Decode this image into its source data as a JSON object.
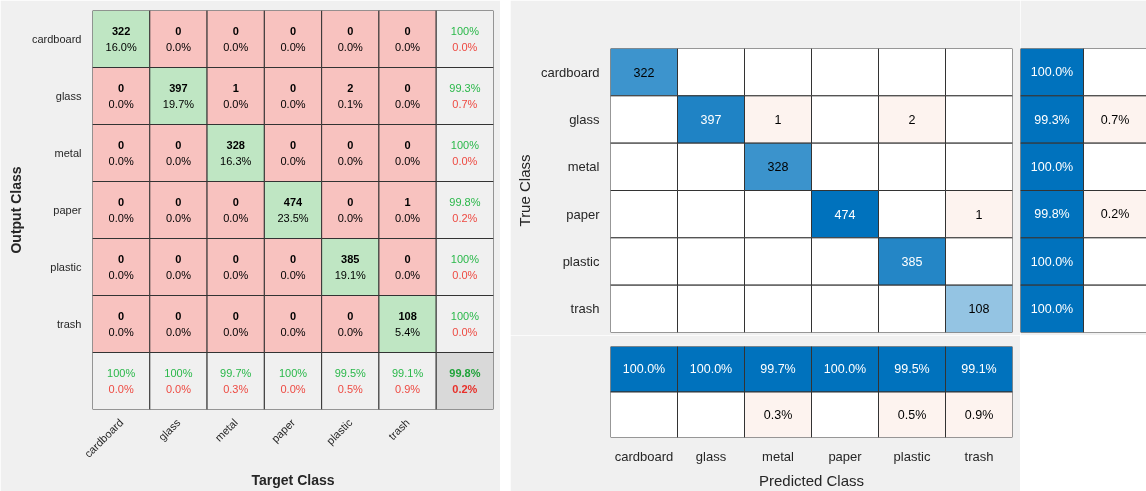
{
  "chart_data": [
    {
      "type": "heatmap",
      "xlabel": "Target Class",
      "ylabel": "Output Class",
      "categories": [
        "cardboard",
        "glass",
        "metal",
        "paper",
        "plastic",
        "trash",
        null
      ],
      "y_categories": [
        "cardboard",
        "glass",
        "metal",
        "paper",
        "plastic",
        "trash",
        null
      ],
      "cells": [
        [
          322,
          0,
          0,
          0,
          0,
          0,
          100
        ],
        [
          0,
          397,
          1,
          0,
          2,
          0,
          99.3
        ],
        [
          0,
          0,
          328,
          0,
          0,
          0,
          100
        ],
        [
          0,
          0,
          0,
          474,
          0,
          1,
          99.8
        ],
        [
          0,
          0,
          0,
          0,
          385,
          0,
          100
        ],
        [
          0,
          0,
          0,
          0,
          0,
          108,
          100
        ],
        [
          100,
          100,
          99.7,
          100,
          99.5,
          99.1,
          99.8
        ]
      ],
      "cell_labels": [
        [
          "322",
          "0",
          "0",
          "0",
          "0",
          "0",
          "100%"
        ],
        [
          "0",
          "397",
          "1",
          "0",
          "2",
          "0",
          "99.3%"
        ],
        [
          "0",
          "0",
          "328",
          "0",
          "0",
          "0",
          "100%"
        ],
        [
          "0",
          "0",
          "0",
          "474",
          "0",
          "1",
          "99.8%"
        ],
        [
          "0",
          "0",
          "0",
          "0",
          "385",
          "0",
          "100%"
        ],
        [
          "0",
          "0",
          "0",
          "0",
          "0",
          "108",
          "100%"
        ],
        [
          "100%",
          "100%",
          "99.7%",
          "100%",
          "99.5%",
          "99.1%",
          "99.8%"
        ]
      ],
      "annotations": [
        "16.0%",
        "0.0%",
        "0.0%",
        "0.0%",
        "0.0%",
        "0.0%",
        "0.0%",
        "0.0%",
        "19.7%",
        "0.0%",
        "0.0%",
        "0.1%",
        "0.0%",
        "0.7%",
        "0.0%",
        "0.0%",
        "16.3%",
        "0.0%",
        "0.0%",
        "0.0%",
        "0.0%",
        "0.0%",
        "0.0%",
        "0.0%",
        "23.5%",
        "0.0%",
        "0.0%",
        "0.2%",
        "0.0%",
        "0.0%",
        "0.0%",
        "0.0%",
        "19.1%",
        "0.0%",
        "0.0%",
        "0.0%",
        "0.0%",
        "0.0%",
        "0.0%",
        "0.0%",
        "5.4%",
        "0.0%",
        "0.0%",
        "0.0%",
        "0.3%",
        "0.0%",
        "0.5%",
        "0.9%",
        "0.2%"
      ]
    },
    {
      "type": "heatmap",
      "ylabel": "True Class",
      "tick_labels": "y",
      "data_labels": true,
      "categories": [
        null,
        null,
        null,
        null,
        null,
        null
      ],
      "y_categories": [
        "cardboard",
        "glass",
        "metal",
        "paper",
        "plastic",
        "trash"
      ],
      "cells": [
        [
          322,
          null,
          null,
          null,
          null,
          null
        ],
        [
          null,
          397,
          1,
          null,
          2,
          null
        ],
        [
          null,
          null,
          328,
          null,
          null,
          null
        ],
        [
          null,
          null,
          null,
          474,
          null,
          1
        ],
        [
          null,
          null,
          null,
          null,
          385,
          null
        ],
        [
          null,
          null,
          null,
          null,
          null,
          108
        ]
      ]
    },
    {
      "type": "heatmap",
      "tick_labels": false,
      "categories": [
        null,
        null
      ],
      "y_categories": [
        null,
        null,
        null,
        null,
        null,
        null
      ],
      "cells": [
        [
          100.0,
          null
        ],
        [
          99.3,
          0.7
        ],
        [
          100.0,
          null
        ],
        [
          99.8,
          0.2
        ],
        [
          100.0,
          null
        ],
        [
          100.0,
          null
        ]
      ],
      "cell_labels": [
        [
          "100.0%",
          null
        ],
        [
          "99.3%",
          "0.7%"
        ],
        [
          "100.0%",
          null
        ],
        [
          "99.8%",
          "0.2%"
        ],
        [
          "100.0%",
          null
        ],
        [
          "100.0%",
          null
        ]
      ]
    },
    {
      "type": "heatmap",
      "xlabel": "Predicted Class",
      "tick_labels": "x",
      "categories": [
        "cardboard",
        "glass",
        "metal",
        "paper",
        "plastic",
        "trash"
      ],
      "y_categories": [
        null,
        null
      ],
      "cells": [
        [
          100.0,
          100.0,
          99.7,
          100.0,
          99.5,
          99.1
        ],
        [
          null,
          null,
          0.3,
          null,
          0.5,
          0.9
        ]
      ],
      "cell_labels": [
        [
          "100.0%",
          "100.0%",
          "99.7%",
          "100.0%",
          "99.5%",
          "99.1%"
        ],
        [
          null,
          null,
          "0.3%",
          null,
          "0.5%",
          "0.9%"
        ]
      ]
    }
  ]
}
